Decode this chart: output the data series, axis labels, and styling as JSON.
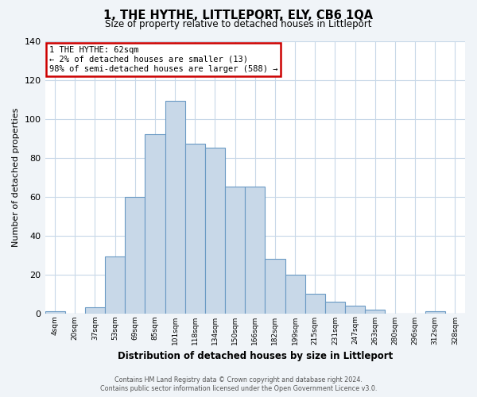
{
  "title": "1, THE HYTHE, LITTLEPORT, ELY, CB6 1QA",
  "subtitle": "Size of property relative to detached houses in Littleport",
  "xlabel": "Distribution of detached houses by size in Littleport",
  "ylabel": "Number of detached properties",
  "bar_labels": [
    "4sqm",
    "20sqm",
    "37sqm",
    "53sqm",
    "69sqm",
    "85sqm",
    "101sqm",
    "118sqm",
    "134sqm",
    "150sqm",
    "166sqm",
    "182sqm",
    "199sqm",
    "215sqm",
    "231sqm",
    "247sqm",
    "263sqm",
    "280sqm",
    "296sqm",
    "312sqm",
    "328sqm"
  ],
  "bar_values": [
    1,
    0,
    3,
    29,
    60,
    92,
    109,
    87,
    85,
    65,
    65,
    28,
    20,
    10,
    6,
    4,
    2,
    0,
    0,
    1,
    0
  ],
  "bar_color": "#c8d8e8",
  "bar_edge_color": "#6a9ac4",
  "annotation_title": "1 THE HYTHE: 62sqm",
  "annotation_line1": "← 2% of detached houses are smaller (13)",
  "annotation_line2": "98% of semi-detached houses are larger (588) →",
  "annotation_box_edge": "#cc0000",
  "ylim": [
    0,
    140
  ],
  "yticks": [
    0,
    20,
    40,
    60,
    80,
    100,
    120,
    140
  ],
  "footer_line1": "Contains HM Land Registry data © Crown copyright and database right 2024.",
  "footer_line2": "Contains public sector information licensed under the Open Government Licence v3.0.",
  "bg_color": "#f0f4f8",
  "plot_bg_color": "#ffffff",
  "grid_color": "#c8d8e8"
}
